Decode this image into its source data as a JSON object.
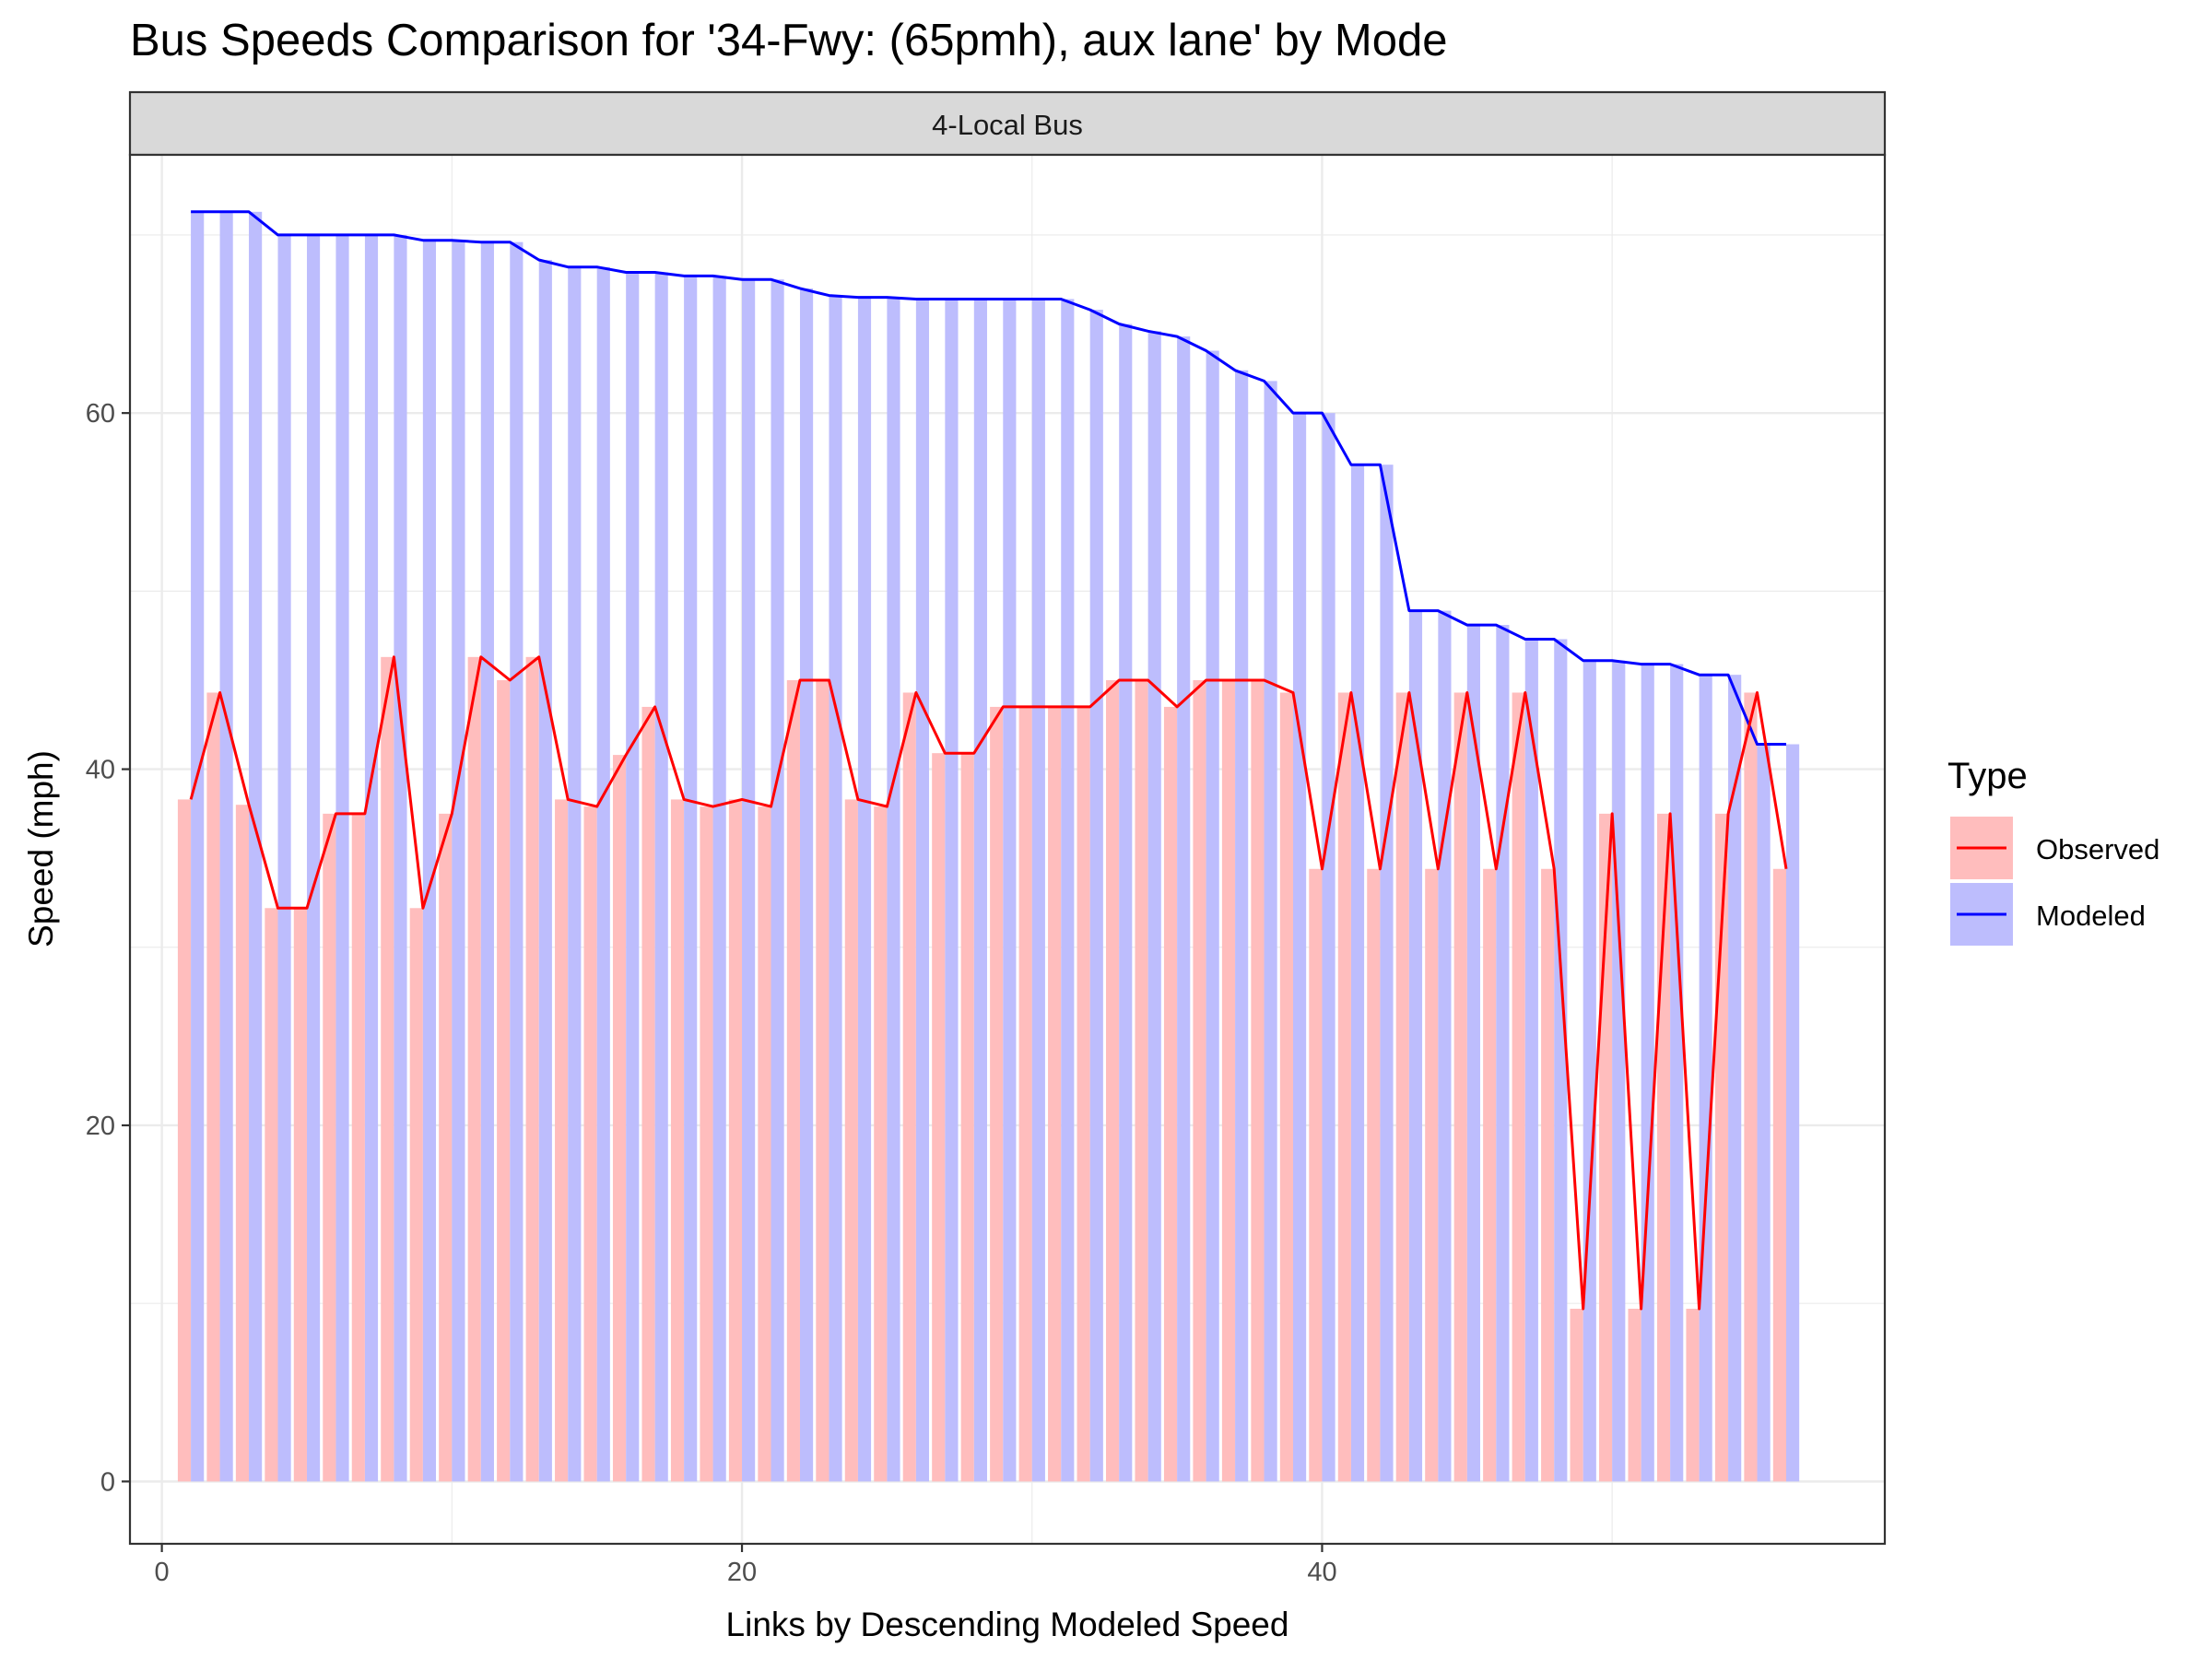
{
  "chart_data": {
    "type": "bar",
    "title": "Bus Speeds Comparison for '34-Fwy: (65pmh), aux lane' by Mode",
    "facet": "4-Local Bus",
    "xlabel": "Links by Descending Modeled Speed",
    "ylabel": "Speed (mph)",
    "xlim": [
      -1.1,
      59.4
    ],
    "ylim": [
      -3.5,
      74.5
    ],
    "xticks": [
      0,
      20,
      40
    ],
    "yticks": [
      0,
      20,
      40,
      60
    ],
    "x_tick_labels": [
      "0",
      "20",
      "40"
    ],
    "y_tick_labels": [
      "0",
      "20",
      "40",
      "60"
    ],
    "grid": true,
    "legend": {
      "title": "Type",
      "position": "right",
      "entries": [
        "Observed",
        "Modeled"
      ]
    },
    "colors": {
      "observed_line": "#ff0000",
      "observed_bar": "#ffbdbd",
      "modeled_line": "#0000ff",
      "modeled_bar": "#bdbdfd",
      "strip_fill": "#d9d9d9",
      "grid": "#ebebeb"
    },
    "series": [
      {
        "name": "Observed",
        "x": [
          1,
          2,
          3,
          4,
          5,
          6,
          7,
          8,
          9,
          10,
          11,
          12,
          13,
          14,
          15,
          16,
          17,
          18,
          19,
          20,
          21,
          22,
          23,
          24,
          25,
          26,
          27,
          28,
          29,
          30,
          31,
          32,
          33,
          34,
          35,
          36,
          37,
          38,
          39,
          40,
          41,
          42,
          43,
          44,
          45,
          46,
          47,
          48,
          49,
          50,
          51,
          52,
          53,
          54,
          55,
          56
        ],
        "values": [
          38.3,
          44.3,
          38.0,
          32.2,
          32.2,
          37.5,
          37.5,
          46.3,
          32.2,
          37.5,
          46.3,
          45.0,
          46.3,
          38.3,
          37.9,
          40.8,
          43.5,
          38.3,
          37.9,
          38.3,
          37.9,
          45.0,
          45.0,
          38.3,
          37.9,
          44.3,
          40.9,
          40.9,
          43.5,
          43.5,
          43.5,
          43.5,
          45.0,
          45.0,
          43.5,
          45.0,
          45.0,
          45.0,
          44.3,
          34.4,
          44.3,
          34.4,
          44.3,
          34.4,
          44.3,
          34.4,
          44.3,
          34.4,
          9.7,
          37.5,
          9.7,
          37.5,
          9.7,
          37.5,
          44.3,
          34.4
        ]
      },
      {
        "name": "Modeled",
        "x": [
          1,
          2,
          3,
          4,
          5,
          6,
          7,
          8,
          9,
          10,
          11,
          12,
          13,
          14,
          15,
          16,
          17,
          18,
          19,
          20,
          21,
          22,
          23,
          24,
          25,
          26,
          27,
          28,
          29,
          30,
          31,
          32,
          33,
          34,
          35,
          36,
          37,
          38,
          39,
          40,
          41,
          42,
          43,
          44,
          45,
          46,
          47,
          48,
          49,
          50,
          51,
          52,
          53,
          54,
          55,
          56
        ],
        "values": [
          71.3,
          71.3,
          71.3,
          70.0,
          70.0,
          70.0,
          70.0,
          70.0,
          69.7,
          69.7,
          69.6,
          69.6,
          68.6,
          68.2,
          68.2,
          67.9,
          67.9,
          67.7,
          67.7,
          67.5,
          67.5,
          67.0,
          66.6,
          66.5,
          66.5,
          66.4,
          66.4,
          66.4,
          66.4,
          66.4,
          66.4,
          65.8,
          65.0,
          64.6,
          64.3,
          63.5,
          62.4,
          61.8,
          60.0,
          60.0,
          57.1,
          57.1,
          48.9,
          48.9,
          48.1,
          48.1,
          47.3,
          47.3,
          46.1,
          46.1,
          45.9,
          45.9,
          45.3,
          45.3,
          41.4,
          41.4
        ]
      }
    ]
  }
}
